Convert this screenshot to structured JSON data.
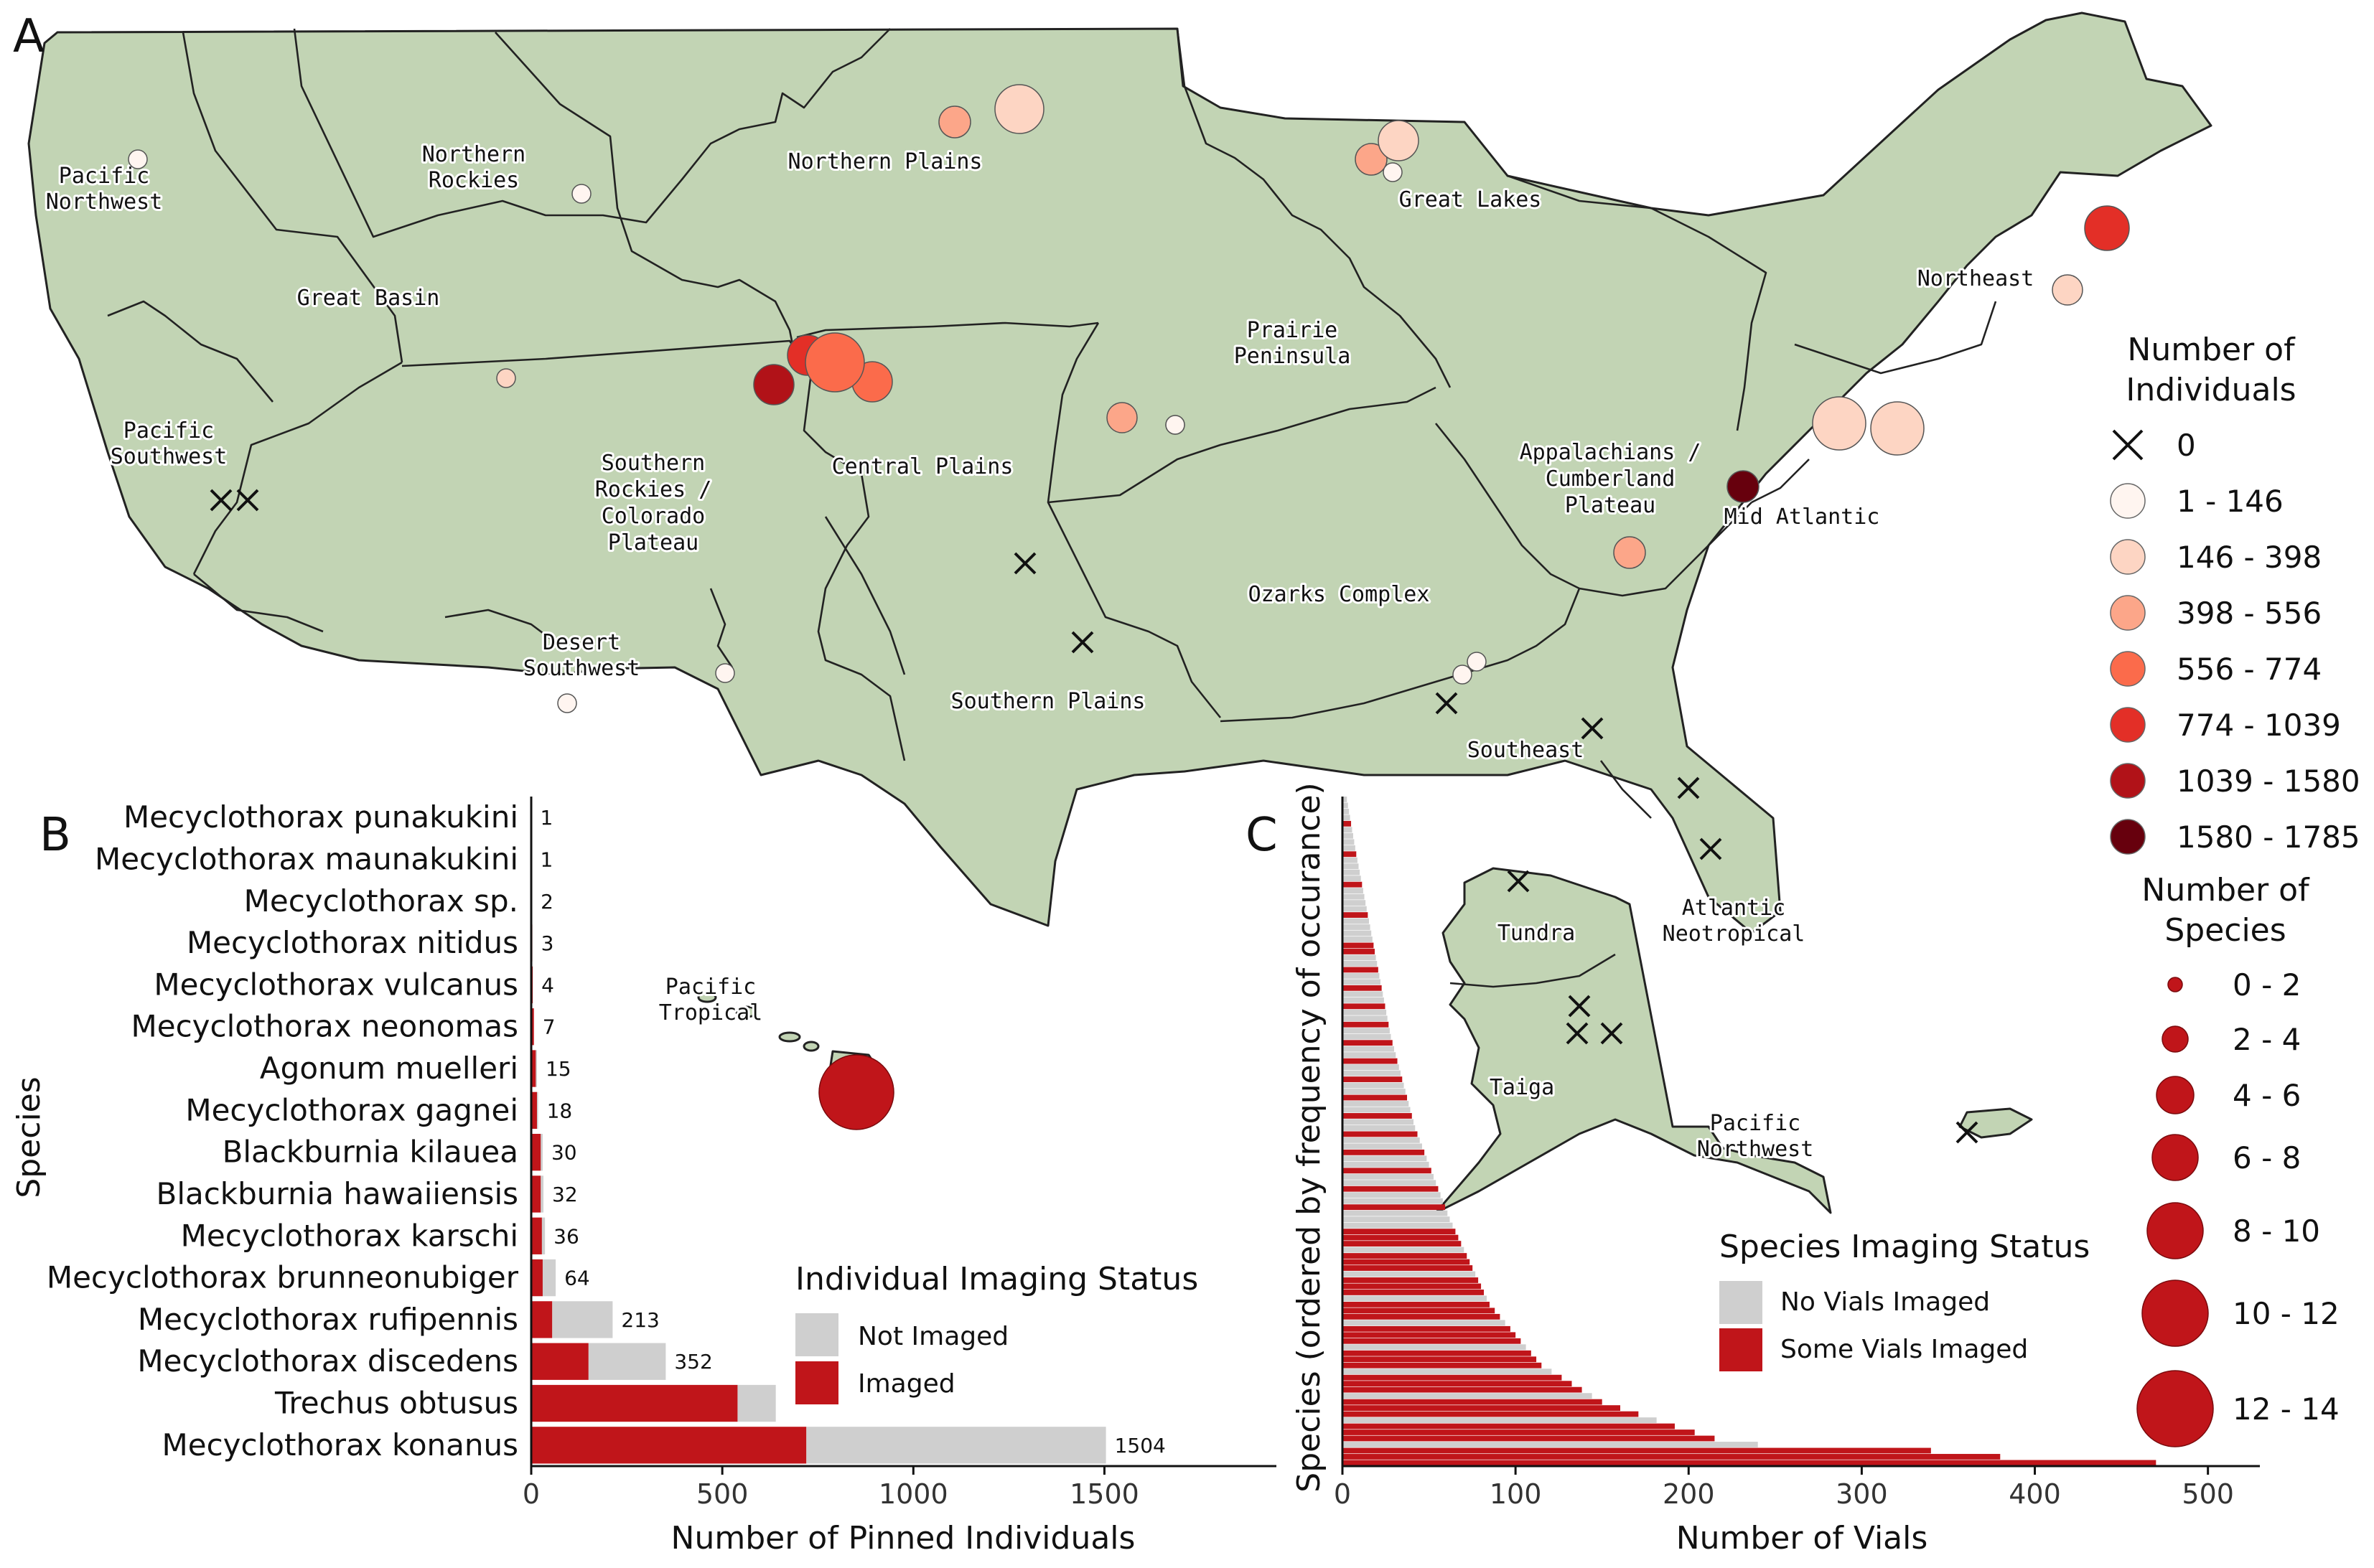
{
  "panels": {
    "a": "A",
    "b": "B",
    "c": "C"
  },
  "colors": {
    "land": "#c2d4b4",
    "imaged": "#c0151a",
    "not_imaged": "#cfcfcf",
    "individual_bins": [
      "#fff5f0",
      "#fdd5c3",
      "#fca689",
      "#fb6b4b",
      "#e32f27",
      "#b11218",
      "#67000d"
    ]
  },
  "map": {
    "region_labels": [
      "Pacific Northwest",
      "Northern Rockies",
      "Northern Plains",
      "Great Lakes",
      "Northeast",
      "Great Basin",
      "Prairie Peninsula",
      "Pacific Southwest",
      "Southern Rockies / Colorado Plateau",
      "Central Plains",
      "Appalachians / Cumberland Plateau",
      "Mid Atlantic",
      "Ozarks Complex",
      "Desert Southwest",
      "Southern Plains",
      "Southeast",
      "Atlantic Neotropical",
      "Pacific Tropical",
      "Tundra",
      "Taiga",
      "Pacific Northwest"
    ],
    "individual_points": [
      {
        "region": "Pacific Northwest",
        "bin": 1
      },
      {
        "region": "Northern Rockies",
        "bin": 1
      },
      {
        "region": "Northern Plains",
        "bin": 3
      },
      {
        "region": "Northern Plains",
        "bin": 2
      },
      {
        "region": "Great Lakes",
        "bin": 3
      },
      {
        "region": "Great Lakes",
        "bin": 2
      },
      {
        "region": "Great Lakes",
        "bin": 1
      },
      {
        "region": "Northeast",
        "bin": 5
      },
      {
        "region": "Northeast",
        "bin": 2
      },
      {
        "region": "Great Basin",
        "bin": 2
      },
      {
        "region": "Southern Rockies / Colorado Plateau",
        "bin": 6
      },
      {
        "region": "Southern Rockies / Colorado Plateau",
        "bin": 5
      },
      {
        "region": "Central Plains",
        "bin": 4
      },
      {
        "region": "Central Plains",
        "bin": 4
      },
      {
        "region": "Central Plains",
        "bin": 1
      },
      {
        "region": "Prairie Peninsula",
        "bin": 3
      },
      {
        "region": "Prairie Peninsula",
        "bin": 1
      },
      {
        "region": "Mid Atlantic",
        "bin": 2
      },
      {
        "region": "Mid Atlantic",
        "bin": 2
      },
      {
        "region": "Mid Atlantic",
        "bin": 7
      },
      {
        "region": "Appalachians / Cumberland Plateau",
        "bin": 3
      },
      {
        "region": "Desert Southwest",
        "bin": 1
      },
      {
        "region": "Desert Southwest",
        "bin": 1
      },
      {
        "region": "Ozarks Complex",
        "bin": 1
      },
      {
        "region": "Ozarks Complex",
        "bin": 1
      }
    ],
    "zero_points": [
      {
        "region": "Pacific Southwest"
      },
      {
        "region": "Pacific Southwest"
      },
      {
        "region": "Southern Plains"
      },
      {
        "region": "Southern Plains"
      },
      {
        "region": "Southeast"
      },
      {
        "region": "Southeast"
      },
      {
        "region": "Southeast"
      },
      {
        "region": "Southeast"
      },
      {
        "region": "Tundra"
      },
      {
        "region": "Taiga"
      },
      {
        "region": "Taiga"
      },
      {
        "region": "Taiga"
      },
      {
        "region": "Pacific Northwest"
      }
    ],
    "species_points": [
      {
        "region": "Pacific Tropical",
        "bin": "12 - 14"
      }
    ]
  },
  "legend_individuals": {
    "title_line1": "Number of",
    "title_line2": "Individuals",
    "items": [
      "0",
      "1 - 146",
      "146 - 398",
      "398 - 556",
      "556 - 774",
      "774 - 1039",
      "1039 - 1580",
      "1580 - 1785"
    ]
  },
  "legend_species": {
    "title_line1": "Number of",
    "title_line2": "Species",
    "items": [
      "0 - 2",
      "2 - 4",
      "4 - 6",
      "6 - 8",
      "8 - 10",
      "10 - 12",
      "12 - 14"
    ]
  },
  "chart_data": [
    {
      "type": "bar",
      "orientation": "horizontal",
      "stacked": true,
      "xlabel": "Number of Pinned Individuals",
      "ylabel": "Species",
      "xlim": [
        0,
        1950
      ],
      "xticks": [
        "0",
        "500",
        "1000",
        "1500"
      ],
      "categories": [
        "Mecyclothorax punakukini",
        "Mecyclothorax maunakukini",
        "Mecyclothorax sp.",
        "Mecyclothorax nitidus",
        "Mecyclothorax vulcanus",
        "Mecyclothorax neonomas",
        "Agonum muelleri",
        "Mecyclothorax gagnei",
        "Blackburnia kilauea",
        "Blackburnia hawaiiensis",
        "Mecyclothorax karschi",
        "Mecyclothorax brunneonubiger",
        "Mecyclothorax rufipennis",
        "Mecyclothorax discedens",
        "Trechus obtusus",
        "Mecyclothorax konanus"
      ],
      "totals": [
        "1",
        "1",
        "2",
        "3",
        "4",
        "7",
        "15",
        "18",
        "30",
        "32",
        "36",
        "64",
        "213",
        "352",
        "",
        "1504"
      ],
      "series": [
        {
          "name": "Imaged",
          "values": [
            1,
            1,
            2,
            3,
            4,
            7,
            12,
            15,
            25,
            25,
            28,
            30,
            55,
            150,
            540,
            720
          ]
        },
        {
          "name": "Not Imaged",
          "values": [
            0,
            0,
            0,
            0,
            0,
            0,
            3,
            3,
            5,
            7,
            8,
            34,
            158,
            202,
            100,
            784
          ]
        }
      ],
      "legend": {
        "title": "Individual Imaging Status",
        "items": [
          "Not Imaged",
          "Imaged"
        ],
        "placement": "bottom-right"
      }
    },
    {
      "type": "bar",
      "orientation": "horizontal",
      "xlabel": "Number of Vials",
      "ylabel": "Species (ordered by frequency of occurance)",
      "xlim": [
        0,
        530
      ],
      "xticks": [
        "0",
        "100",
        "200",
        "300",
        "400",
        "500"
      ],
      "n_species": 110,
      "curve_anchors": [
        {
          "rank": 0,
          "vials": 470
        },
        {
          "rank": 1,
          "vials": 380
        },
        {
          "rank": 2,
          "vials": 340
        },
        {
          "rank": 3,
          "vials": 240
        },
        {
          "rank": 4,
          "vials": 215
        },
        {
          "rank": 6,
          "vials": 192
        },
        {
          "rank": 10,
          "vials": 150
        },
        {
          "rank": 16,
          "vials": 115
        },
        {
          "rank": 26,
          "vials": 85
        },
        {
          "rank": 40,
          "vials": 62
        },
        {
          "rank": 55,
          "vials": 42
        },
        {
          "rank": 70,
          "vials": 28
        },
        {
          "rank": 85,
          "vials": 18
        },
        {
          "rank": 100,
          "vials": 8
        },
        {
          "rank": 110,
          "vials": 2
        }
      ],
      "legend": {
        "title": "Species Imaging Status",
        "items": [
          "No Vials Imaged",
          "Some Vials Imaged"
        ],
        "placement": "bottom-center"
      }
    }
  ]
}
